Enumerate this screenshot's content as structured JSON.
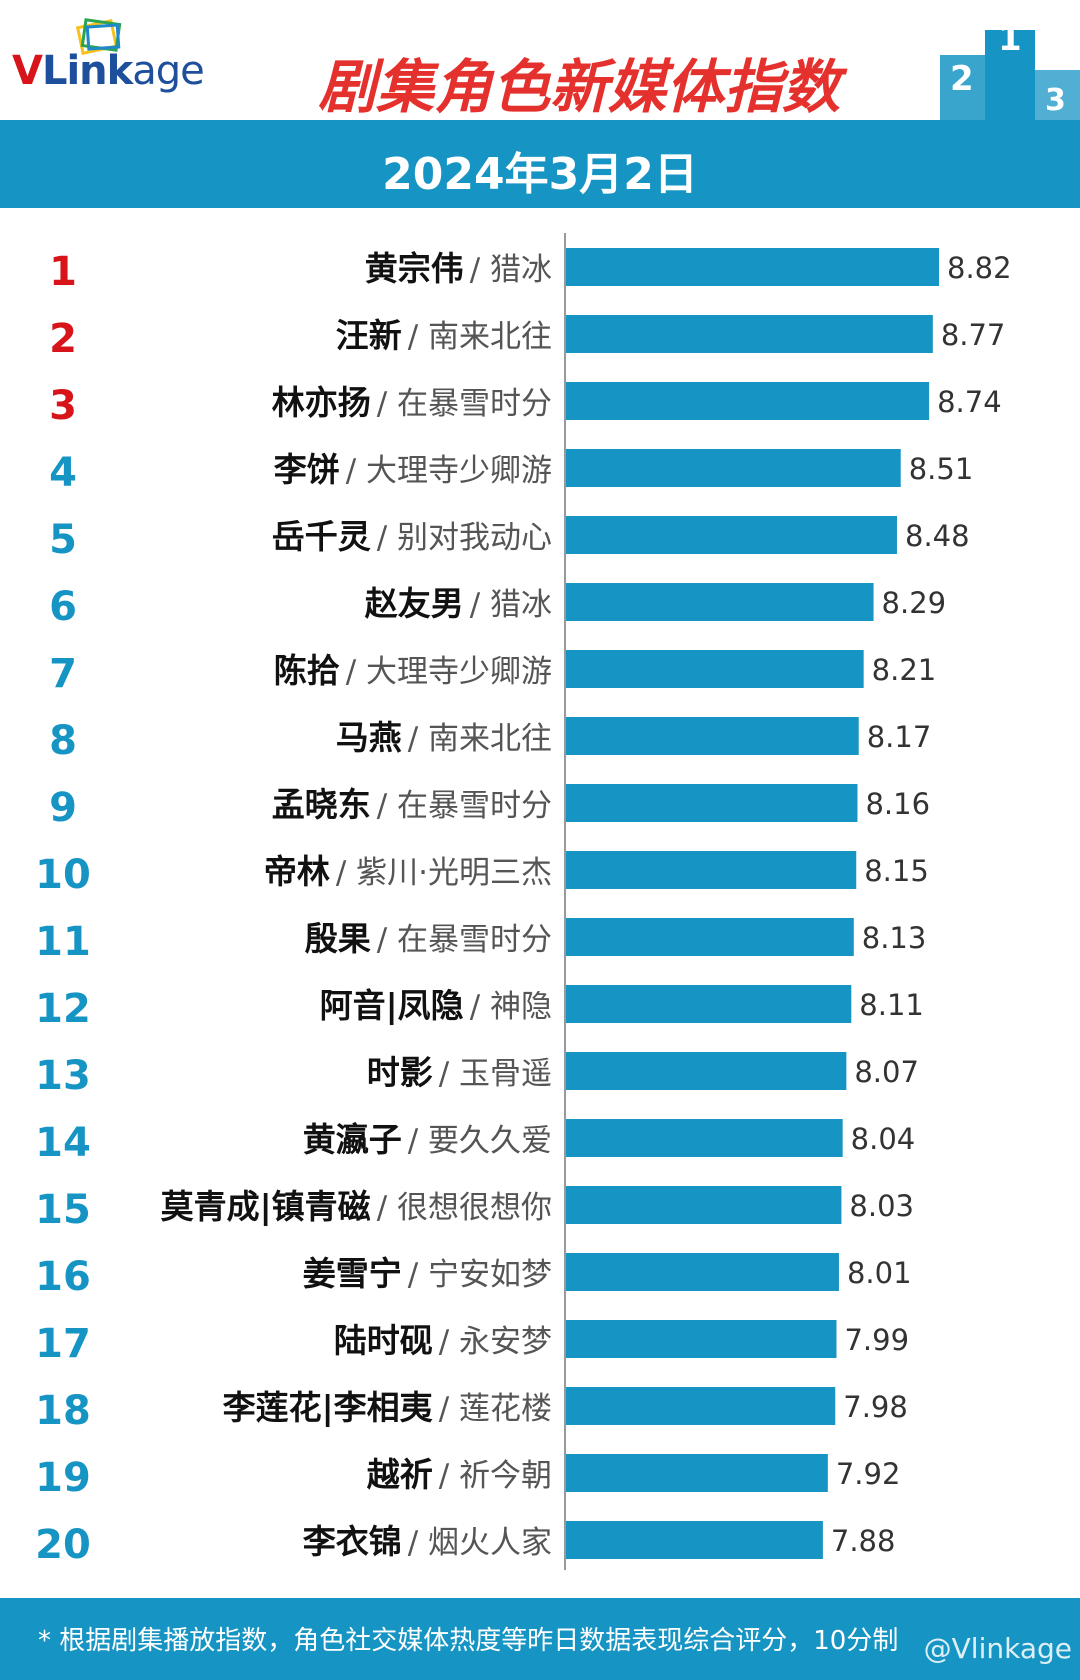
{
  "header": {
    "logo_text": "VLinkage",
    "title": "剧集角色新媒体指数"
  },
  "date_label": "2024年3月2日",
  "footer_note": "* 根据剧集播放指数，角色社交媒体热度等昨日数据表现综合评分，10分制",
  "watermark": "@Vlinkage",
  "colors": {
    "bar": "#1694c3",
    "rank_top": "#d7141a",
    "rank_normal": "#1694c3",
    "title": "#e5312d"
  },
  "chart_data": {
    "type": "bar",
    "orientation": "horizontal",
    "title": "剧集角色新媒体指数",
    "xlim": [
      5.8,
      9.5
    ],
    "grid": false,
    "categories": [
      {
        "rank": "1",
        "role": "黄宗伟",
        "drama": "猎冰"
      },
      {
        "rank": "2",
        "role": "汪新",
        "drama": "南来北往"
      },
      {
        "rank": "3",
        "role": "林亦扬",
        "drama": "在暴雪时分"
      },
      {
        "rank": "4",
        "role": "李饼",
        "drama": "大理寺少卿游"
      },
      {
        "rank": "5",
        "role": "岳千灵",
        "drama": "别对我动心"
      },
      {
        "rank": "6",
        "role": "赵友男",
        "drama": "猎冰"
      },
      {
        "rank": "7",
        "role": "陈拾",
        "drama": "大理寺少卿游"
      },
      {
        "rank": "8",
        "role": "马燕",
        "drama": "南来北往"
      },
      {
        "rank": "9",
        "role": "孟晓东",
        "drama": "在暴雪时分"
      },
      {
        "rank": "10",
        "role": "帝林",
        "drama": "紫川·光明三杰"
      },
      {
        "rank": "11",
        "role": "殷果",
        "drama": "在暴雪时分"
      },
      {
        "rank": "12",
        "role": "阿音|凤隐",
        "drama": "神隐"
      },
      {
        "rank": "13",
        "role": "时影",
        "drama": "玉骨遥"
      },
      {
        "rank": "14",
        "role": "黄瀛子",
        "drama": "要久久爱"
      },
      {
        "rank": "15",
        "role": "莫青成|镇青磁",
        "drama": "很想很想你"
      },
      {
        "rank": "16",
        "role": "姜雪宁",
        "drama": "宁安如梦"
      },
      {
        "rank": "17",
        "role": "陆时砚",
        "drama": "永安梦"
      },
      {
        "rank": "18",
        "role": "李莲花|李相夷",
        "drama": "莲花楼"
      },
      {
        "rank": "19",
        "role": "越祈",
        "drama": "祈今朝"
      },
      {
        "rank": "20",
        "role": "李衣锦",
        "drama": "烟火人家"
      }
    ],
    "values": [
      8.82,
      8.77,
      8.74,
      8.51,
      8.48,
      8.29,
      8.21,
      8.17,
      8.16,
      8.15,
      8.13,
      8.11,
      8.07,
      8.04,
      8.03,
      8.01,
      7.99,
      7.98,
      7.92,
      7.88
    ],
    "value_labels": [
      "8.82",
      "8.77",
      "8.74",
      "8.51",
      "8.48",
      "8.29",
      "8.21",
      "8.17",
      "8.16",
      "8.15",
      "8.13",
      "8.11",
      "8.07",
      "8.04",
      "8.03",
      "8.01",
      "7.99",
      "7.98",
      "7.92",
      "7.88"
    ]
  }
}
